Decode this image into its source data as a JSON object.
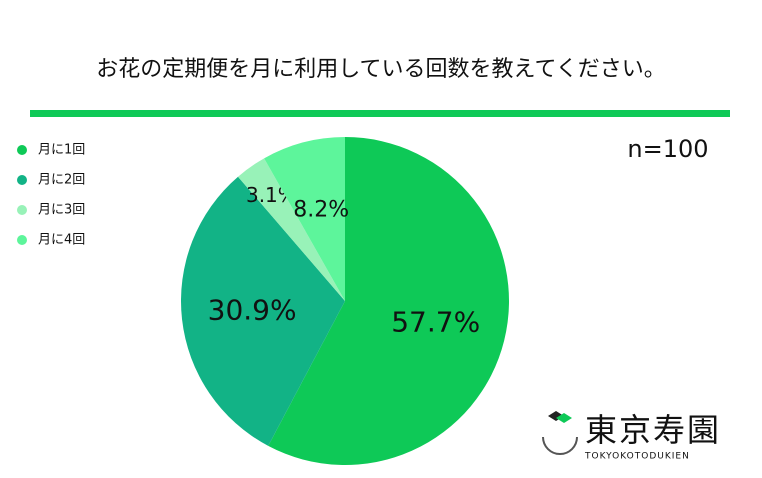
{
  "chart_data": {
    "type": "pie",
    "title": "お花の定期便を月に利用している回数を教えてください。",
    "annotation": "n=100",
    "categories": [
      "月に1回",
      "月に2回",
      "月に3回",
      "月に4回"
    ],
    "values": [
      57.7,
      30.9,
      3.1,
      8.2
    ],
    "value_labels": [
      "57.7%",
      "30.9%",
      "3.1%",
      "8.2%"
    ],
    "colors": [
      "#0ec957",
      "#12b386",
      "#98f2b8",
      "#5df59b"
    ],
    "legend": "top-left"
  },
  "logo": {
    "name": "東京寿園",
    "romaji": "TOKYOKOTODUKIEN"
  }
}
